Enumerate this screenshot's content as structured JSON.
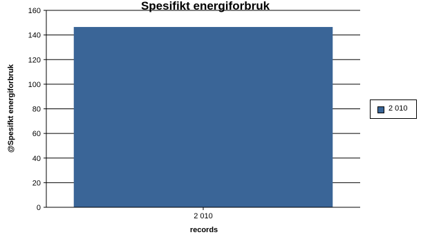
{
  "chart_data": {
    "type": "bar",
    "title": "Spesifikt energiforbruk",
    "categories": [
      "2 010"
    ],
    "series": [
      {
        "name": "2 010",
        "values": [
          146.5
        ],
        "color": "#3a6597"
      }
    ],
    "xlabel": "records",
    "ylabel": "@Spesifkt energiforbruk",
    "ylim": [
      0,
      160
    ],
    "yticks": [
      0,
      20,
      40,
      60,
      80,
      100,
      120,
      140,
      160
    ],
    "grid": true,
    "legend_position": "right"
  },
  "colors": {
    "bar": "#3a6597",
    "grid": "#000000",
    "background": "#ffffff"
  }
}
